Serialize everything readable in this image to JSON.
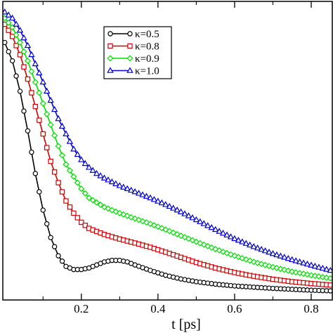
{
  "chart_data": {
    "type": "line",
    "title": "",
    "xlabel": "t [ps]",
    "ylabel": "",
    "xlim": [
      -0.005,
      0.855
    ],
    "ylim": [
      -0.015,
      0.965
    ],
    "x_ticks": [
      0.2,
      0.4,
      0.6,
      0.8
    ],
    "x_tick_labels": [
      "0.2",
      "0.4",
      "0.6",
      "0.8"
    ],
    "grid": false,
    "legend_position": "top-center",
    "series": [
      {
        "name": "κ=0.5",
        "color": "#000000",
        "marker": "circle",
        "points": [
          [
            0.0,
            0.83
          ],
          [
            0.02,
            0.77
          ],
          [
            0.04,
            0.67
          ],
          [
            0.06,
            0.54
          ],
          [
            0.08,
            0.4
          ],
          [
            0.1,
            0.28
          ],
          [
            0.12,
            0.19
          ],
          [
            0.14,
            0.13
          ],
          [
            0.16,
            0.095
          ],
          [
            0.18,
            0.085
          ],
          [
            0.2,
            0.085
          ],
          [
            0.22,
            0.09
          ],
          [
            0.24,
            0.1
          ],
          [
            0.26,
            0.11
          ],
          [
            0.28,
            0.115
          ],
          [
            0.3,
            0.115
          ],
          [
            0.32,
            0.11
          ],
          [
            0.34,
            0.1
          ],
          [
            0.38,
            0.082
          ],
          [
            0.42,
            0.066
          ],
          [
            0.46,
            0.054
          ],
          [
            0.5,
            0.045
          ],
          [
            0.55,
            0.037
          ],
          [
            0.6,
            0.031
          ],
          [
            0.65,
            0.027
          ],
          [
            0.7,
            0.023
          ],
          [
            0.75,
            0.02
          ],
          [
            0.8,
            0.017
          ],
          [
            0.85,
            0.015
          ]
        ]
      },
      {
        "name": "κ=0.8",
        "color": "#d00000",
        "marker": "square",
        "points": [
          [
            0.0,
            0.89
          ],
          [
            0.02,
            0.85
          ],
          [
            0.04,
            0.79
          ],
          [
            0.06,
            0.71
          ],
          [
            0.08,
            0.62
          ],
          [
            0.1,
            0.53
          ],
          [
            0.12,
            0.44
          ],
          [
            0.14,
            0.37
          ],
          [
            0.16,
            0.31
          ],
          [
            0.18,
            0.27
          ],
          [
            0.2,
            0.24
          ],
          [
            0.22,
            0.22
          ],
          [
            0.26,
            0.2
          ],
          [
            0.3,
            0.185
          ],
          [
            0.34,
            0.172
          ],
          [
            0.38,
            0.158
          ],
          [
            0.42,
            0.142
          ],
          [
            0.46,
            0.125
          ],
          [
            0.5,
            0.108
          ],
          [
            0.55,
            0.09
          ],
          [
            0.6,
            0.075
          ],
          [
            0.65,
            0.063
          ],
          [
            0.7,
            0.053
          ],
          [
            0.75,
            0.045
          ],
          [
            0.8,
            0.039
          ],
          [
            0.85,
            0.034
          ]
        ]
      },
      {
        "name": "κ=0.9",
        "color": "#00e000",
        "marker": "diamond",
        "points": [
          [
            0.0,
            0.91
          ],
          [
            0.02,
            0.88
          ],
          [
            0.04,
            0.83
          ],
          [
            0.06,
            0.77
          ],
          [
            0.08,
            0.7
          ],
          [
            0.1,
            0.63
          ],
          [
            0.12,
            0.56
          ],
          [
            0.14,
            0.49
          ],
          [
            0.16,
            0.43
          ],
          [
            0.18,
            0.39
          ],
          [
            0.2,
            0.35
          ],
          [
            0.22,
            0.32
          ],
          [
            0.24,
            0.305
          ],
          [
            0.26,
            0.29
          ],
          [
            0.3,
            0.27
          ],
          [
            0.34,
            0.252
          ],
          [
            0.38,
            0.235
          ],
          [
            0.42,
            0.216
          ],
          [
            0.46,
            0.196
          ],
          [
            0.5,
            0.176
          ],
          [
            0.55,
            0.152
          ],
          [
            0.6,
            0.13
          ],
          [
            0.65,
            0.11
          ],
          [
            0.7,
            0.093
          ],
          [
            0.75,
            0.078
          ],
          [
            0.8,
            0.066
          ],
          [
            0.85,
            0.056
          ]
        ]
      },
      {
        "name": "κ=1.0",
        "color": "#0000d0",
        "marker": "triangle",
        "points": [
          [
            0.0,
            0.93
          ],
          [
            0.02,
            0.91
          ],
          [
            0.04,
            0.87
          ],
          [
            0.06,
            0.82
          ],
          [
            0.08,
            0.76
          ],
          [
            0.1,
            0.7
          ],
          [
            0.12,
            0.64
          ],
          [
            0.14,
            0.58
          ],
          [
            0.16,
            0.53
          ],
          [
            0.18,
            0.48
          ],
          [
            0.2,
            0.445
          ],
          [
            0.22,
            0.42
          ],
          [
            0.24,
            0.4
          ],
          [
            0.26,
            0.385
          ],
          [
            0.3,
            0.36
          ],
          [
            0.34,
            0.34
          ],
          [
            0.38,
            0.32
          ],
          [
            0.42,
            0.298
          ],
          [
            0.46,
            0.274
          ],
          [
            0.5,
            0.248
          ],
          [
            0.55,
            0.216
          ],
          [
            0.6,
            0.186
          ],
          [
            0.65,
            0.16
          ],
          [
            0.7,
            0.137
          ],
          [
            0.75,
            0.117
          ],
          [
            0.8,
            0.099
          ],
          [
            0.85,
            0.082
          ]
        ]
      }
    ]
  }
}
